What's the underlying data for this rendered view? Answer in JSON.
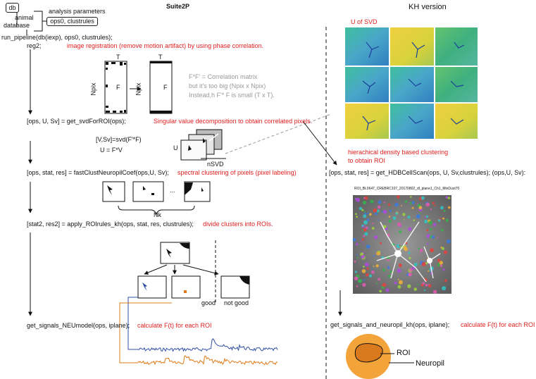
{
  "title": "Suite2P",
  "kh_title": "KH version",
  "db_label": "db",
  "animal_database": [
    "animal",
    "database"
  ],
  "analysis_parameters": "analysis parameters",
  "ops_box": "ops0, clustrules",
  "run_pipeline": "run_pipeline(db(iexp), ops0, clustrules);",
  "reg2": "reg2;",
  "reg_note": "image registration (remove motion artifact) by using phase correlation.",
  "matrix_T": "T",
  "matrix_Npix": "Npix",
  "matrix_F": "F",
  "corr_notes": [
    "F*F' = Correlation matrix",
    "but it's too big (Npix x Npix)",
    "Instead,h F'* F is small (T x T)."
  ],
  "svd_code": "[ops, U, Sv]    = get_svdForROI(ops);",
  "svd_note": "Singular value decomposition to obtain correlated pixels.",
  "svd_eq1": "[V,Sv]=svd(F'*F)",
  "svd_eq2": "U = F*V",
  "svd_U": "U",
  "nsvd": "nSVD",
  "clust_code": "[ops, stat, res]  = fastClustNeuropilCoef(ops,U, Sv);",
  "clust_note": "spectral clustering of pixels (pixel labeling)",
  "ellipsis": "...",
  "nk": "Nk",
  "rules_code": "[stat2, res2] = apply_ROIrules_kh(ops, stat, res, clustrules);",
  "rules_note": "divide clusters into ROIs.",
  "good": "good",
  "not_good": "not good",
  "signals_code": "get_signals_NEUmodel(ops, iplane);",
  "signals_note": "calculate F(t) for each ROI",
  "u_of_svd": "U of SVD",
  "hdb_note": [
    "hierachical density based clustering",
    "to obtain ROI"
  ],
  "hdb_code": "[ops, stat, res] = get_HDBCellScan(ops, U, Sv,clustrules);  (ops,U, Sv):",
  "roi_image_title": "ROI_BL0647_CREBRC107_20170802_dl_plane1_Ch1_MinDust70",
  "kh_signals_code": "get_signals_and_neuropil_kh(ops, iplane);",
  "kh_signals_note": "calculate F(t) for each ROI",
  "roi_label": "ROI",
  "neuropil_label": "Neuropil",
  "colors": {
    "red_note": "#e02020",
    "gray_note": "#9a9a9a",
    "trace_blue": "#2f4fa3",
    "trace_orange": "#e07b1a",
    "neuropil_orange": "#f2a33a",
    "roi_fill": "#d97a1e"
  }
}
